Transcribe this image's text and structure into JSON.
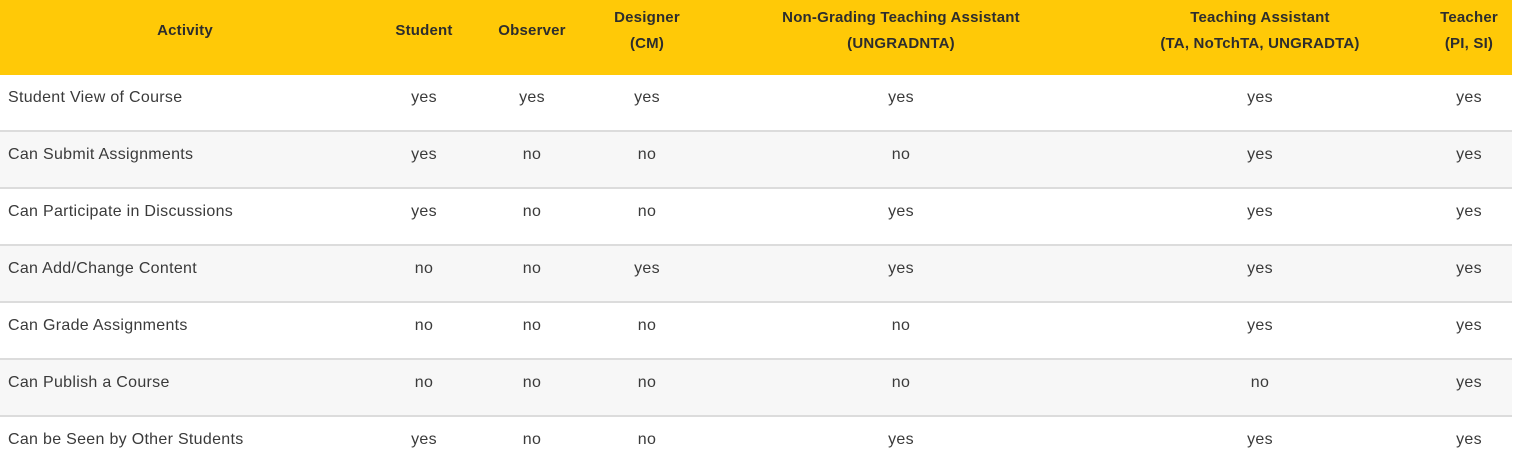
{
  "table": {
    "colors": {
      "header_bg": "#ffc907",
      "header_text": "#2d2d2d",
      "body_text": "#3a3a3a",
      "row_bg": "#ffffff",
      "row_alt_bg": "#f7f7f7",
      "separator": "#dcdcdc"
    },
    "columns": [
      {
        "id": "activity",
        "label": "Activity",
        "sub": ""
      },
      {
        "id": "student",
        "label": "Student",
        "sub": ""
      },
      {
        "id": "observer",
        "label": "Observer",
        "sub": ""
      },
      {
        "id": "designer",
        "label": "Designer",
        "sub": "(CM)"
      },
      {
        "id": "non-grading-ta",
        "label": "Non-Grading Teaching Assistant",
        "sub": "(UNGRADNTA)"
      },
      {
        "id": "teaching-assistant",
        "label": "Teaching Assistant",
        "sub": "(TA, NoTchTA, UNGRADTA)"
      },
      {
        "id": "teacher",
        "label": "Teacher",
        "sub": "(PI, SI)"
      }
    ],
    "rows": [
      {
        "activity": "Student View of Course",
        "values": [
          "yes",
          "yes",
          "yes",
          "yes",
          "yes",
          "yes"
        ]
      },
      {
        "activity": "Can Submit Assignments",
        "values": [
          "yes",
          "no",
          "no",
          "no",
          "yes",
          "yes"
        ]
      },
      {
        "activity": "Can Participate in Discussions",
        "values": [
          "yes",
          "no",
          "no",
          "yes",
          "yes",
          "yes"
        ]
      },
      {
        "activity": "Can Add/Change Content",
        "values": [
          "no",
          "no",
          "yes",
          "yes",
          "yes",
          "yes"
        ]
      },
      {
        "activity": "Can Grade Assignments",
        "values": [
          "no",
          "no",
          "no",
          "no",
          "yes",
          "yes"
        ]
      },
      {
        "activity": "Can Publish a Course",
        "values": [
          "no",
          "no",
          "no",
          "no",
          "no",
          "yes"
        ]
      },
      {
        "activity": "Can be Seen by Other Students",
        "values": [
          "yes",
          "no",
          "no",
          "yes",
          "yes",
          "yes"
        ]
      }
    ]
  }
}
